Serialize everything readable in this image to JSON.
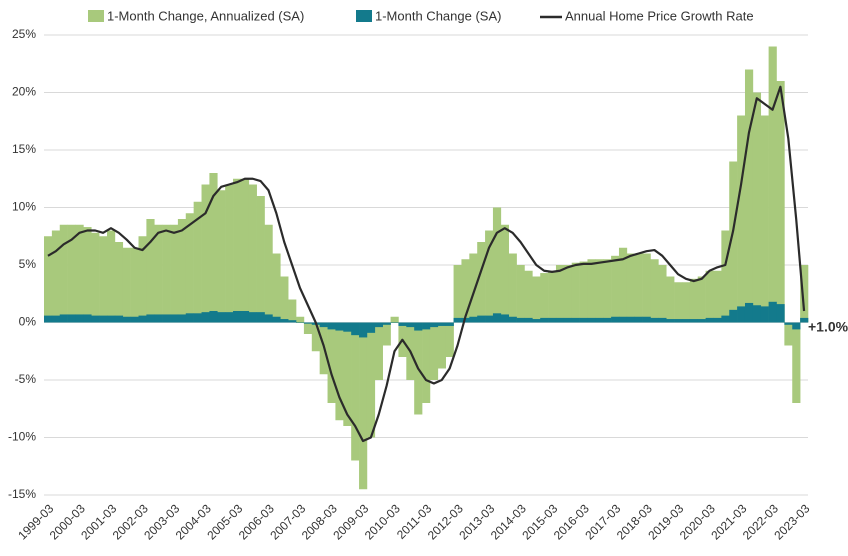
{
  "chart_data": {
    "type": "bar",
    "categories": [
      "1999-03",
      null,
      null,
      null,
      "2000-03",
      null,
      null,
      null,
      "2001-03",
      null,
      null,
      null,
      "2002-03",
      null,
      null,
      null,
      "2003-03",
      null,
      null,
      null,
      "2004-03",
      null,
      null,
      null,
      "2005-03",
      null,
      null,
      null,
      "2006-03",
      null,
      null,
      null,
      "2007-03",
      null,
      null,
      null,
      "2008-03",
      null,
      null,
      null,
      "2009-03",
      null,
      null,
      null,
      "2010-03",
      null,
      null,
      null,
      "2011-03",
      null,
      null,
      null,
      "2012-03",
      null,
      null,
      null,
      "2013-03",
      null,
      null,
      null,
      "2014-03",
      null,
      null,
      null,
      "2015-03",
      null,
      null,
      null,
      "2016-03",
      null,
      null,
      null,
      "2017-03",
      null,
      null,
      null,
      "2018-03",
      null,
      null,
      null,
      "2019-03",
      null,
      null,
      null,
      "2020-03",
      null,
      null,
      null,
      "2021-03",
      null,
      null,
      null,
      "2022-03",
      null,
      null,
      null,
      "2023-03"
    ],
    "series": [
      {
        "name": "1-Month Change, Annualized (SA)",
        "type": "bar",
        "color": "#a8c97c",
        "values": [
          7.5,
          8.0,
          8.5,
          8.5,
          8.5,
          8.3,
          7.8,
          7.5,
          8.0,
          7.0,
          6.5,
          6.5,
          7.5,
          9.0,
          8.5,
          8.5,
          8.5,
          9.0,
          9.5,
          10.5,
          12.0,
          13.0,
          11.5,
          12.0,
          12.5,
          12.5,
          12.0,
          11.0,
          8.5,
          6.0,
          4.0,
          2.0,
          0.5,
          -1.0,
          -2.5,
          -4.5,
          -7.0,
          -8.5,
          -9.0,
          -12.0,
          -14.5,
          -10.0,
          -5.0,
          -2.0,
          0.5,
          -3.0,
          -5.0,
          -8.0,
          -7.0,
          -5.0,
          -4.0,
          -3.0,
          5.0,
          5.5,
          6.0,
          7.0,
          8.0,
          10.0,
          8.5,
          6.0,
          5.0,
          4.5,
          4.0,
          4.3,
          4.5,
          5.0,
          5.0,
          5.2,
          5.3,
          5.5,
          5.5,
          5.5,
          5.8,
          6.5,
          6.0,
          6.0,
          6.0,
          5.5,
          5.0,
          4.0,
          3.5,
          3.5,
          3.8,
          4.0,
          4.5,
          4.5,
          8.0,
          14.0,
          18.0,
          22.0,
          20.0,
          18.0,
          24.0,
          21.0,
          -2.0,
          -7.0,
          5.0
        ]
      },
      {
        "name": "1-Month Change (SA)",
        "type": "bar",
        "color": "#137a8c",
        "values": [
          0.6,
          0.6,
          0.7,
          0.7,
          0.7,
          0.7,
          0.6,
          0.6,
          0.6,
          0.6,
          0.5,
          0.5,
          0.6,
          0.7,
          0.7,
          0.7,
          0.7,
          0.7,
          0.8,
          0.8,
          0.9,
          1.0,
          0.9,
          0.9,
          1.0,
          1.0,
          0.9,
          0.9,
          0.7,
          0.5,
          0.3,
          0.2,
          0.0,
          -0.1,
          -0.2,
          -0.4,
          -0.6,
          -0.7,
          -0.8,
          -1.1,
          -1.3,
          -0.9,
          -0.4,
          -0.2,
          0.0,
          -0.3,
          -0.4,
          -0.7,
          -0.6,
          -0.4,
          -0.3,
          -0.3,
          0.4,
          0.4,
          0.5,
          0.6,
          0.6,
          0.8,
          0.7,
          0.5,
          0.4,
          0.4,
          0.3,
          0.4,
          0.4,
          0.4,
          0.4,
          0.4,
          0.4,
          0.4,
          0.4,
          0.4,
          0.5,
          0.5,
          0.5,
          0.5,
          0.5,
          0.4,
          0.4,
          0.3,
          0.3,
          0.3,
          0.3,
          0.3,
          0.4,
          0.4,
          0.6,
          1.1,
          1.4,
          1.7,
          1.5,
          1.4,
          1.8,
          1.6,
          -0.2,
          -0.6,
          0.4
        ]
      },
      {
        "name": "Annual Home Price Growth Rate",
        "type": "line",
        "color": "#2b2b2b",
        "values": [
          5.8,
          6.2,
          6.8,
          7.2,
          7.8,
          8.0,
          8.0,
          7.8,
          8.2,
          7.8,
          7.2,
          6.5,
          6.3,
          7.0,
          7.8,
          8.0,
          7.8,
          8.0,
          8.5,
          9.0,
          9.5,
          11.0,
          11.8,
          12.0,
          12.2,
          12.5,
          12.5,
          12.3,
          11.5,
          9.5,
          7.0,
          5.0,
          3.0,
          1.5,
          0.0,
          -2.0,
          -4.5,
          -6.5,
          -8.0,
          -9.0,
          -10.3,
          -10.0,
          -8.0,
          -5.5,
          -2.5,
          -1.5,
          -2.5,
          -4.0,
          -5.0,
          -5.3,
          -5.0,
          -4.0,
          -2.0,
          0.5,
          2.5,
          4.5,
          6.5,
          7.8,
          8.2,
          7.8,
          7.0,
          6.0,
          5.0,
          4.5,
          4.4,
          4.5,
          4.8,
          5.0,
          5.1,
          5.1,
          5.2,
          5.3,
          5.4,
          5.5,
          5.8,
          6.0,
          6.2,
          6.3,
          5.8,
          5.0,
          4.2,
          3.8,
          3.6,
          3.8,
          4.5,
          4.8,
          5.0,
          8.0,
          12.0,
          16.5,
          19.5,
          19.0,
          18.5,
          20.5,
          16.0,
          9.0,
          1.0
        ]
      }
    ],
    "annotation": "+1.0%",
    "ylim": [
      -15,
      25
    ],
    "yticks": [
      {
        "value": -15,
        "label": "-15%"
      },
      {
        "value": -10,
        "label": "-10%"
      },
      {
        "value": -5,
        "label": "-5%"
      },
      {
        "value": 0,
        "label": "0%"
      },
      {
        "value": 5,
        "label": "5%"
      },
      {
        "value": 10,
        "label": "10%"
      },
      {
        "value": 15,
        "label": "15%"
      },
      {
        "value": 20,
        "label": "20%"
      },
      {
        "value": 25,
        "label": "25%"
      }
    ],
    "grid": true
  }
}
